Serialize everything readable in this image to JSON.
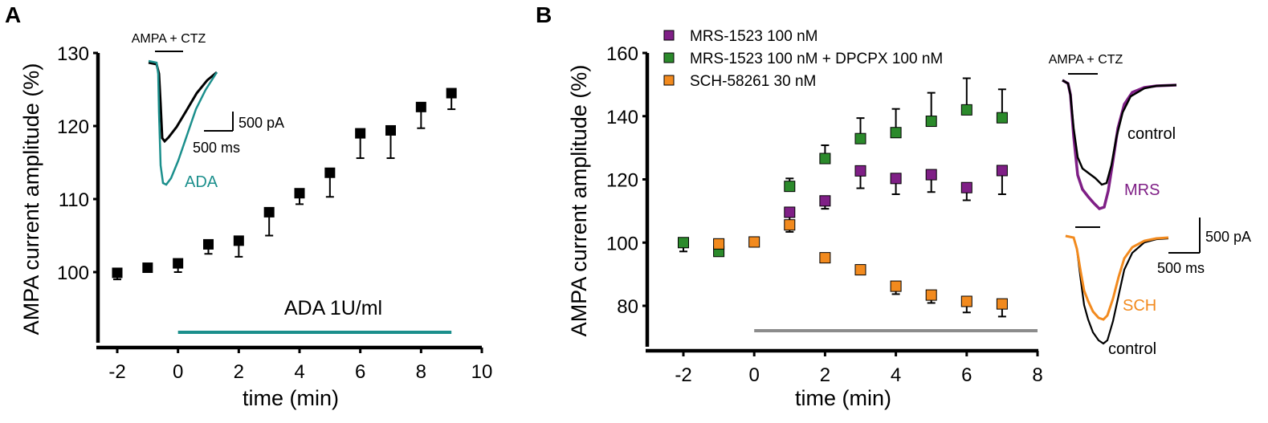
{
  "colors": {
    "black": "#000000",
    "teal": "#1b8f8c",
    "purple": "#7f1f86",
    "green": "#2b8a2b",
    "orange": "#f28a1e",
    "gray": "#8c8c8c"
  },
  "chart_data": [
    {
      "type": "scatter",
      "panel": "A",
      "xlabel": "time (min)",
      "ylabel": "AMPA current amplitude (%)",
      "xlim": [
        -2,
        10
      ],
      "ylim": [
        90,
        130
      ],
      "xticks": [
        -2,
        0,
        2,
        4,
        6,
        8,
        10
      ],
      "yticks": [
        100,
        110,
        120,
        130
      ],
      "series": [
        {
          "name": "ADA 1U/ml",
          "color": "#000000",
          "x": [
            -2,
            -1,
            0,
            1,
            2,
            3,
            4,
            5,
            6,
            7,
            8,
            9
          ],
          "y": [
            99.9,
            100.6,
            101.2,
            103.8,
            104.3,
            108.2,
            110.8,
            113.6,
            119.0,
            119.4,
            122.6,
            124.5
          ],
          "err": [
            0.9,
            0.4,
            1.2,
            1.3,
            2.2,
            3.2,
            1.5,
            3.3,
            3.4,
            3.8,
            2.9,
            2.2
          ]
        }
      ],
      "drug_bar": {
        "label": "ADA 1U/ml",
        "x_start": 0,
        "x_end": 9,
        "color": "#1b8f8c"
      },
      "inset": {
        "application_label": "AMPA + CTZ",
        "scale_current": "500 pA",
        "scale_time": "500 ms",
        "trace_label": "ADA"
      }
    },
    {
      "type": "scatter",
      "panel": "B",
      "xlabel": "time (min)",
      "ylabel": "AMPA current amplitude (%)",
      "xlim": [
        -3,
        8
      ],
      "ylim": [
        70,
        160
      ],
      "xticks": [
        -2,
        0,
        2,
        4,
        6,
        8
      ],
      "yticks": [
        80,
        100,
        120,
        140,
        160
      ],
      "series": [
        {
          "name": "MRS-1523 100 nM",
          "color": "#7f1f86",
          "x": [
            1,
            2,
            3,
            4,
            5,
            6,
            7
          ],
          "y": [
            109.6,
            113.2,
            122.7,
            120.3,
            121.5,
            117.4,
            122.8
          ],
          "err": [
            3.5,
            2.5,
            5.5,
            5.0,
            5.5,
            4.0,
            7.5
          ]
        },
        {
          "name": "MRS-1523 100 nM + DPCPX 100 nM",
          "color": "#2b8a2b",
          "x": [
            -2,
            -1,
            1,
            2,
            3,
            4,
            5,
            6,
            7
          ],
          "y": [
            100.0,
            97.2,
            117.8,
            126.6,
            132.9,
            134.8,
            138.4,
            142.0,
            139.5
          ],
          "err": [
            2.8,
            1.0,
            2.5,
            4.2,
            6.5,
            7.5,
            9.0,
            10.0,
            9.0
          ]
        },
        {
          "name": "SCH-58261 30 nM",
          "color": "#f28a1e",
          "x": [
            -1,
            0,
            1,
            2,
            3,
            4,
            5,
            6,
            7
          ],
          "y": [
            99.6,
            100.2,
            105.6,
            95.2,
            91.4,
            86.2,
            83.4,
            81.4,
            80.6
          ],
          "err": [
            1.0,
            0.5,
            2.2,
            1.0,
            0.9,
            2.5,
            2.5,
            3.5,
            4.0
          ]
        }
      ],
      "drug_bar": {
        "label": "",
        "x_start": 0,
        "x_end": 8,
        "color": "#8c8c8c"
      },
      "inset": {
        "application_label": "AMPA + CTZ",
        "trace_labels": [
          "control",
          "MRS",
          "SCH",
          "control"
        ],
        "scale_current": "500 pA",
        "scale_time": "500 ms"
      }
    }
  ],
  "panels": {
    "a": {
      "letter": "A"
    },
    "b": {
      "letter": "B"
    }
  }
}
